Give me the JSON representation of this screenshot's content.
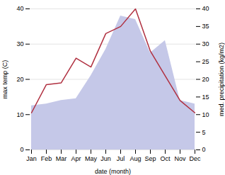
{
  "chart_data": {
    "type": "line",
    "xlabel": "date (month)",
    "ylabel": "max temp (C)",
    "y2label": "med. precipitation (kg/m2)",
    "categories": [
      "Jan",
      "Feb",
      "Mar",
      "Apr",
      "May",
      "Jun",
      "Jul",
      "Aug",
      "Sep",
      "Oct",
      "Nov",
      "Dec"
    ],
    "series": [
      {
        "type": "area",
        "axis": "y2",
        "color": "#c5c8e8",
        "values": [
          12.5,
          13.0,
          14.0,
          14.5,
          21.0,
          28.5,
          38.0,
          37.0,
          27.5,
          31.0,
          14.0,
          13.0
        ]
      },
      {
        "type": "line",
        "color": "#b03040",
        "values": [
          10.5,
          18.5,
          19.0,
          26.0,
          23.5,
          33.0,
          35.0,
          40.0,
          28.0,
          21.0,
          14.0,
          10.5
        ]
      }
    ],
    "ylim": [
      0,
      40
    ],
    "yticks": [
      0,
      10,
      20,
      30,
      40
    ],
    "y2lim": [
      0,
      40
    ],
    "y2ticks": [
      0,
      5,
      10,
      15,
      20,
      25,
      30,
      35,
      40
    ],
    "grid": true
  }
}
